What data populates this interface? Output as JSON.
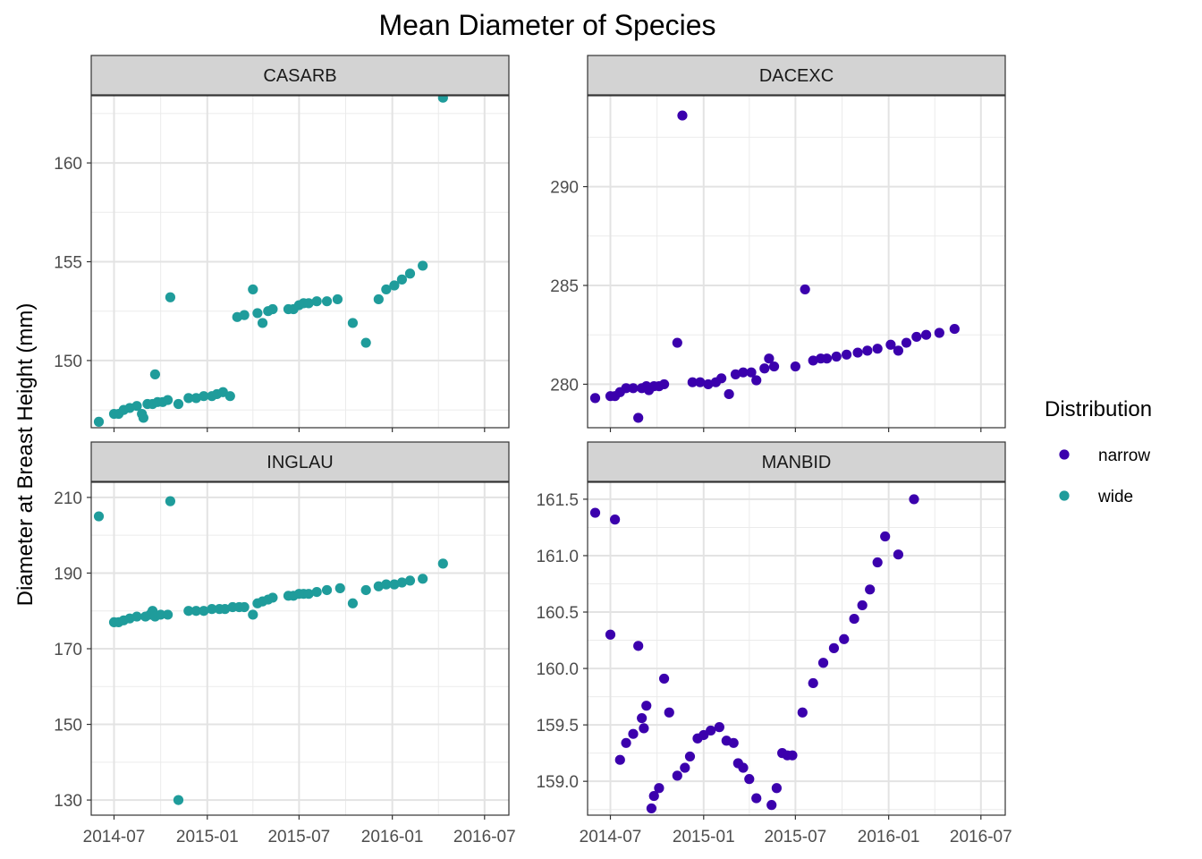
{
  "chart_data": {
    "type": "scatter",
    "title": "Mean Diameter of Species",
    "xlabel": "",
    "ylabel": "Diameter at Breast Height (mm)",
    "x_ticks": [
      "2014-07",
      "2015-01",
      "2015-07",
      "2016-01",
      "2016-07"
    ],
    "grid": true,
    "legend": {
      "title": "Distribution",
      "placement": "right",
      "entries": [
        {
          "label": "narrow",
          "color": "#3b00ad"
        },
        {
          "label": "wide",
          "color": "#1f9c9b"
        }
      ]
    },
    "colors": {
      "narrow": "#3b00ad",
      "wide": "#1f9c9b"
    },
    "x_domain": [
      "2014-05-17",
      "2016-08-18"
    ],
    "panels": [
      {
        "name": "CASARB",
        "distribution": "wide",
        "ylim": [
          146.6,
          163.4
        ],
        "y_ticks": [
          150,
          155,
          160
        ],
        "points": [
          [
            "2014-06-01",
            146.9
          ],
          [
            "2014-07-01",
            147.3
          ],
          [
            "2014-07-10",
            147.3
          ],
          [
            "2014-07-20",
            147.5
          ],
          [
            "2014-08-01",
            147.6
          ],
          [
            "2014-08-15",
            147.7
          ],
          [
            "2014-08-25",
            147.3
          ],
          [
            "2014-08-28",
            147.1
          ],
          [
            "2014-09-05",
            147.8
          ],
          [
            "2014-09-15",
            147.8
          ],
          [
            "2014-09-20",
            149.3
          ],
          [
            "2014-09-25",
            147.9
          ],
          [
            "2014-10-05",
            147.9
          ],
          [
            "2014-10-15",
            148.0
          ],
          [
            "2014-10-20",
            153.2
          ],
          [
            "2014-11-05",
            147.8
          ],
          [
            "2014-11-25",
            148.1
          ],
          [
            "2014-12-10",
            148.1
          ],
          [
            "2014-12-25",
            148.2
          ],
          [
            "2015-01-10",
            148.2
          ],
          [
            "2015-01-20",
            148.3
          ],
          [
            "2015-02-01",
            148.4
          ],
          [
            "2015-02-15",
            148.2
          ],
          [
            "2015-03-01",
            152.2
          ],
          [
            "2015-03-15",
            152.3
          ],
          [
            "2015-04-01",
            153.6
          ],
          [
            "2015-04-10",
            152.4
          ],
          [
            "2015-04-20",
            151.9
          ],
          [
            "2015-05-01",
            152.5
          ],
          [
            "2015-05-10",
            152.6
          ],
          [
            "2015-06-10",
            152.6
          ],
          [
            "2015-06-20",
            152.6
          ],
          [
            "2015-07-01",
            152.8
          ],
          [
            "2015-07-10",
            152.9
          ],
          [
            "2015-07-20",
            152.9
          ],
          [
            "2015-08-05",
            153.0
          ],
          [
            "2015-08-25",
            153.0
          ],
          [
            "2015-09-15",
            153.1
          ],
          [
            "2015-10-15",
            151.9
          ],
          [
            "2015-11-10",
            150.9
          ],
          [
            "2015-12-05",
            153.1
          ],
          [
            "2015-12-20",
            153.6
          ],
          [
            "2016-01-05",
            153.8
          ],
          [
            "2016-01-20",
            154.1
          ],
          [
            "2016-02-05",
            154.4
          ],
          [
            "2016-03-01",
            154.8
          ],
          [
            "2016-04-10",
            163.3
          ]
        ]
      },
      {
        "name": "DACEXC",
        "distribution": "narrow",
        "ylim": [
          277.8,
          294.6
        ],
        "y_ticks": [
          280,
          285,
          290
        ],
        "points": [
          [
            "2014-06-01",
            279.3
          ],
          [
            "2014-07-01",
            279.4
          ],
          [
            "2014-07-10",
            279.4
          ],
          [
            "2014-07-20",
            279.6
          ],
          [
            "2014-08-01",
            279.8
          ],
          [
            "2014-08-15",
            279.8
          ],
          [
            "2014-08-25",
            278.3
          ],
          [
            "2014-09-01",
            279.8
          ],
          [
            "2014-09-10",
            279.9
          ],
          [
            "2014-09-15",
            279.7
          ],
          [
            "2014-09-25",
            279.9
          ],
          [
            "2014-10-05",
            279.9
          ],
          [
            "2014-10-15",
            280.0
          ],
          [
            "2014-11-10",
            282.1
          ],
          [
            "2014-11-20",
            293.6
          ],
          [
            "2014-12-10",
            280.1
          ],
          [
            "2014-12-25",
            280.1
          ],
          [
            "2015-01-10",
            280.0
          ],
          [
            "2015-01-25",
            280.1
          ],
          [
            "2015-02-05",
            280.3
          ],
          [
            "2015-02-20",
            279.5
          ],
          [
            "2015-03-05",
            280.5
          ],
          [
            "2015-03-20",
            280.6
          ],
          [
            "2015-04-05",
            280.6
          ],
          [
            "2015-04-15",
            280.2
          ],
          [
            "2015-05-01",
            280.8
          ],
          [
            "2015-05-10",
            281.3
          ],
          [
            "2015-05-20",
            280.9
          ],
          [
            "2015-07-01",
            280.9
          ],
          [
            "2015-07-20",
            284.8
          ],
          [
            "2015-08-05",
            281.2
          ],
          [
            "2015-08-20",
            281.3
          ],
          [
            "2015-09-01",
            281.3
          ],
          [
            "2015-09-20",
            281.4
          ],
          [
            "2015-10-10",
            281.5
          ],
          [
            "2015-11-01",
            281.6
          ],
          [
            "2015-11-20",
            281.7
          ],
          [
            "2015-12-10",
            281.8
          ],
          [
            "2016-01-05",
            282.0
          ],
          [
            "2016-01-20",
            281.7
          ],
          [
            "2016-02-05",
            282.1
          ],
          [
            "2016-02-25",
            282.4
          ],
          [
            "2016-03-15",
            282.5
          ],
          [
            "2016-04-10",
            282.6
          ],
          [
            "2016-05-10",
            282.8
          ]
        ]
      },
      {
        "name": "INGLAU",
        "distribution": "wide",
        "ylim": [
          126,
          214
        ],
        "y_ticks": [
          130,
          150,
          170,
          190,
          210
        ],
        "points": [
          [
            "2014-06-01",
            205
          ],
          [
            "2014-07-01",
            177
          ],
          [
            "2014-07-10",
            177
          ],
          [
            "2014-07-20",
            177.5
          ],
          [
            "2014-08-01",
            178
          ],
          [
            "2014-08-15",
            178.5
          ],
          [
            "2014-09-01",
            178.5
          ],
          [
            "2014-09-10",
            179
          ],
          [
            "2014-09-15",
            180
          ],
          [
            "2014-09-20",
            178.5
          ],
          [
            "2014-10-01",
            179
          ],
          [
            "2014-10-15",
            179
          ],
          [
            "2014-10-20",
            209
          ],
          [
            "2014-11-05",
            130
          ],
          [
            "2014-11-25",
            180
          ],
          [
            "2014-12-10",
            180
          ],
          [
            "2014-12-25",
            180
          ],
          [
            "2015-01-10",
            180.5
          ],
          [
            "2015-01-25",
            180.5
          ],
          [
            "2015-02-05",
            180.5
          ],
          [
            "2015-02-20",
            181
          ],
          [
            "2015-03-05",
            181
          ],
          [
            "2015-03-15",
            181
          ],
          [
            "2015-04-01",
            179
          ],
          [
            "2015-04-10",
            182
          ],
          [
            "2015-04-20",
            182.5
          ],
          [
            "2015-05-01",
            183
          ],
          [
            "2015-05-10",
            183.5
          ],
          [
            "2015-06-10",
            184
          ],
          [
            "2015-06-20",
            184
          ],
          [
            "2015-07-01",
            184.5
          ],
          [
            "2015-07-10",
            184.5
          ],
          [
            "2015-07-20",
            184.5
          ],
          [
            "2015-08-05",
            185
          ],
          [
            "2015-08-25",
            185.5
          ],
          [
            "2015-09-20",
            186
          ],
          [
            "2015-10-15",
            182
          ],
          [
            "2015-11-10",
            185.5
          ],
          [
            "2015-12-05",
            186.5
          ],
          [
            "2015-12-20",
            187
          ],
          [
            "2016-01-05",
            187
          ],
          [
            "2016-01-20",
            187.5
          ],
          [
            "2016-02-05",
            188
          ],
          [
            "2016-03-01",
            188.5
          ],
          [
            "2016-04-10",
            192.5
          ]
        ]
      },
      {
        "name": "MANBID",
        "distribution": "narrow",
        "ylim": [
          158.7,
          161.65
        ],
        "y_ticks": [
          159.0,
          159.5,
          160.0,
          160.5,
          161.0,
          161.5
        ],
        "y_tick_labels": [
          "159.0",
          "159.5",
          "160.0",
          "160.5",
          "161.0",
          "161.5"
        ],
        "points": [
          [
            "2014-06-01",
            161.38
          ],
          [
            "2014-07-01",
            160.3
          ],
          [
            "2014-07-10",
            161.32
          ],
          [
            "2014-07-20",
            159.19
          ],
          [
            "2014-08-01",
            159.34
          ],
          [
            "2014-08-15",
            159.42
          ],
          [
            "2014-08-25",
            160.2
          ],
          [
            "2014-09-01",
            159.56
          ],
          [
            "2014-09-05",
            159.47
          ],
          [
            "2014-09-10",
            159.67
          ],
          [
            "2014-09-20",
            158.76
          ],
          [
            "2014-09-25",
            158.87
          ],
          [
            "2014-10-05",
            158.94
          ],
          [
            "2014-10-15",
            159.91
          ],
          [
            "2014-10-25",
            159.61
          ],
          [
            "2014-11-10",
            159.05
          ],
          [
            "2014-11-25",
            159.12
          ],
          [
            "2014-12-05",
            159.22
          ],
          [
            "2014-12-20",
            159.38
          ],
          [
            "2015-01-01",
            159.41
          ],
          [
            "2015-01-15",
            159.45
          ],
          [
            "2015-02-01",
            159.48
          ],
          [
            "2015-02-15",
            159.36
          ],
          [
            "2015-03-01",
            159.34
          ],
          [
            "2015-03-10",
            159.16
          ],
          [
            "2015-03-20",
            159.12
          ],
          [
            "2015-04-01",
            159.02
          ],
          [
            "2015-04-15",
            158.85
          ],
          [
            "2015-05-15",
            158.79
          ],
          [
            "2015-05-25",
            158.94
          ],
          [
            "2015-06-05",
            159.25
          ],
          [
            "2015-06-15",
            159.23
          ],
          [
            "2015-06-25",
            159.23
          ],
          [
            "2015-07-15",
            159.61
          ],
          [
            "2015-08-05",
            159.87
          ],
          [
            "2015-08-25",
            160.05
          ],
          [
            "2015-09-15",
            160.18
          ],
          [
            "2015-10-05",
            160.26
          ],
          [
            "2015-10-25",
            160.44
          ],
          [
            "2015-11-10",
            160.56
          ],
          [
            "2015-11-25",
            160.7
          ],
          [
            "2015-12-10",
            160.94
          ],
          [
            "2015-12-25",
            161.17
          ],
          [
            "2016-01-20",
            161.01
          ],
          [
            "2016-02-20",
            161.5
          ]
        ]
      }
    ]
  }
}
